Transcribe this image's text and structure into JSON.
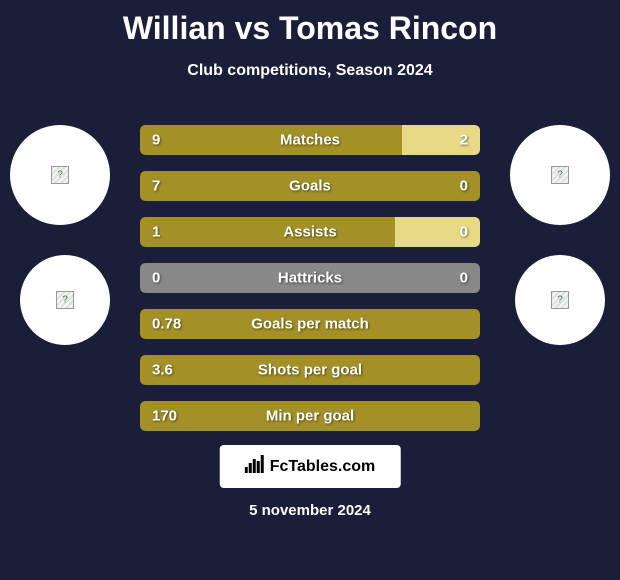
{
  "title": "Willian vs Tomas Rincon",
  "subtitle": "Club competitions, Season 2024",
  "colors": {
    "background": "#1a1e38",
    "bar_primary": "#a39128",
    "bar_secondary": "#e8d987",
    "neutral": "#888888",
    "text": "#ffffff"
  },
  "stats": [
    {
      "label": "Matches",
      "left_value": "9",
      "right_value": "2",
      "left_width_pct": 77,
      "right_width_pct": 23,
      "left_color": "#a39128",
      "right_color": "#e8d987"
    },
    {
      "label": "Goals",
      "left_value": "7",
      "right_value": "0",
      "left_width_pct": 100,
      "right_width_pct": 0,
      "left_color": "#a39128",
      "right_color": "#e8d987"
    },
    {
      "label": "Assists",
      "left_value": "1",
      "right_value": "0",
      "left_width_pct": 75,
      "right_width_pct": 25,
      "left_color": "#a39128",
      "right_color": "#e8d987"
    },
    {
      "label": "Hattricks",
      "left_value": "0",
      "right_value": "0",
      "left_width_pct": 50,
      "right_width_pct": 50,
      "left_color": "#888888",
      "right_color": "#888888"
    },
    {
      "label": "Goals per match",
      "left_value": "0.78",
      "right_value": "",
      "left_width_pct": 100,
      "right_width_pct": 0,
      "left_color": "#a39128",
      "right_color": "#e8d987"
    },
    {
      "label": "Shots per goal",
      "left_value": "3.6",
      "right_value": "",
      "left_width_pct": 100,
      "right_width_pct": 0,
      "left_color": "#a39128",
      "right_color": "#e8d987"
    },
    {
      "label": "Min per goal",
      "left_value": "170",
      "right_value": "",
      "left_width_pct": 100,
      "right_width_pct": 0,
      "left_color": "#a39128",
      "right_color": "#e8d987"
    }
  ],
  "footer": {
    "brand": "FcTables.com",
    "date": "5 november 2024"
  }
}
